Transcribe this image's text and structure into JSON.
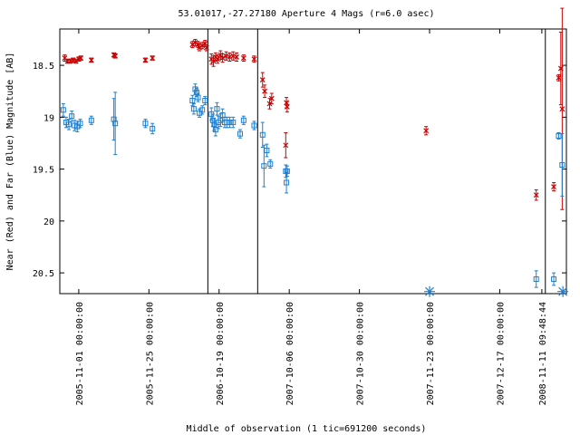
{
  "chart_data": {
    "type": "scatter",
    "title": "53.01017,-27.27180   Aperture 4 Mags (r=6.0 asec)",
    "xlabel": "Middle of observation (1 tic=691200 seconds)",
    "ylabel": "Near (Red) and Far (Blue) Magnitude [AB]",
    "ylim": [
      20.7,
      18.15
    ],
    "y_reversed": true,
    "xlim": [
      -0.27,
      6.95
    ],
    "y_ticks": [
      "18.5",
      "19",
      "19.5",
      "20",
      "20.5"
    ],
    "y_tick_values": [
      18.5,
      19.0,
      19.5,
      20.0,
      20.5
    ],
    "x_ticks": [
      "2005-11-01 00:00:00",
      "2005-11-25 00:00:00",
      "2006-10-19 00:00:00",
      "2007-10-06 00:00:00",
      "2007-10-30 00:00:00",
      "2007-11-23 00:00:00",
      "2007-12-17 00:00:00",
      "2008-11-11 09:48:44"
    ],
    "x_tick_positions": [
      0,
      1,
      2,
      3,
      4,
      5,
      6,
      6.6
    ],
    "segment_breaks": [
      1.84,
      2.55,
      6.65
    ],
    "grid": false,
    "legend": "none",
    "colors": {
      "near": "#cc0000",
      "far": "#1f7fd0",
      "marker_star": "#1f7fd0",
      "axis": "#000000"
    },
    "series": [
      {
        "name": "Near (Red)",
        "marker": "x",
        "points": [
          {
            "x": -0.2,
            "y": 18.43,
            "e": 0.03
          },
          {
            "x": -0.16,
            "y": 18.46,
            "e": 0.02
          },
          {
            "x": -0.12,
            "y": 18.46,
            "e": 0.02
          },
          {
            "x": -0.08,
            "y": 18.45,
            "e": 0.02
          },
          {
            "x": -0.04,
            "y": 18.46,
            "e": 0.02
          },
          {
            "x": 0.0,
            "y": 18.44,
            "e": 0.02
          },
          {
            "x": 0.03,
            "y": 18.43,
            "e": 0.02
          },
          {
            "x": 0.18,
            "y": 18.45,
            "e": 0.02
          },
          {
            "x": 0.5,
            "y": 18.4,
            "e": 0.02
          },
          {
            "x": 0.52,
            "y": 18.41,
            "e": 0.02
          },
          {
            "x": 0.95,
            "y": 18.45,
            "e": 0.02
          },
          {
            "x": 1.05,
            "y": 18.43,
            "e": 0.02
          },
          {
            "x": 1.62,
            "y": 18.3,
            "e": 0.03
          },
          {
            "x": 1.66,
            "y": 18.28,
            "e": 0.03
          },
          {
            "x": 1.7,
            "y": 18.3,
            "e": 0.03
          },
          {
            "x": 1.72,
            "y": 18.33,
            "e": 0.03
          },
          {
            "x": 1.76,
            "y": 18.31,
            "e": 0.03
          },
          {
            "x": 1.8,
            "y": 18.29,
            "e": 0.03
          },
          {
            "x": 1.82,
            "y": 18.33,
            "e": 0.03
          },
          {
            "x": 1.89,
            "y": 18.44,
            "e": 0.05
          },
          {
            "x": 1.92,
            "y": 18.46,
            "e": 0.05
          },
          {
            "x": 1.95,
            "y": 18.42,
            "e": 0.04
          },
          {
            "x": 1.98,
            "y": 18.44,
            "e": 0.04
          },
          {
            "x": 2.02,
            "y": 18.4,
            "e": 0.04
          },
          {
            "x": 2.05,
            "y": 18.43,
            "e": 0.04
          },
          {
            "x": 2.1,
            "y": 18.41,
            "e": 0.04
          },
          {
            "x": 2.15,
            "y": 18.42,
            "e": 0.04
          },
          {
            "x": 2.2,
            "y": 18.41,
            "e": 0.04
          },
          {
            "x": 2.25,
            "y": 18.42,
            "e": 0.04
          },
          {
            "x": 2.35,
            "y": 18.43,
            "e": 0.03
          },
          {
            "x": 2.5,
            "y": 18.44,
            "e": 0.03
          },
          {
            "x": 2.62,
            "y": 18.64,
            "e": 0.07
          },
          {
            "x": 2.65,
            "y": 18.75,
            "e": 0.06
          },
          {
            "x": 2.72,
            "y": 18.87,
            "e": 0.05
          },
          {
            "x": 2.75,
            "y": 18.82,
            "e": 0.05
          },
          {
            "x": 2.95,
            "y": 19.27,
            "e": 0.12
          },
          {
            "x": 2.96,
            "y": 18.86,
            "e": 0.05
          },
          {
            "x": 2.97,
            "y": 18.9,
            "e": 0.05
          },
          {
            "x": 4.95,
            "y": 19.13,
            "e": 0.04
          },
          {
            "x": 6.52,
            "y": 19.75,
            "e": 0.05
          },
          {
            "x": 6.77,
            "y": 19.67,
            "e": 0.04
          },
          {
            "x": 6.84,
            "y": 18.62,
            "e": 0.03
          },
          {
            "x": 6.87,
            "y": 18.53,
            "e": 0.35
          },
          {
            "x": 6.89,
            "y": 18.92,
            "e": 0.97
          }
        ]
      },
      {
        "name": "Far (Blue)",
        "marker": "square",
        "points": [
          {
            "x": -0.22,
            "y": 18.93,
            "e": 0.06
          },
          {
            "x": -0.18,
            "y": 19.05,
            "e": 0.05
          },
          {
            "x": -0.14,
            "y": 19.07,
            "e": 0.05
          },
          {
            "x": -0.1,
            "y": 18.99,
            "e": 0.05
          },
          {
            "x": -0.06,
            "y": 19.08,
            "e": 0.05
          },
          {
            "x": -0.02,
            "y": 19.09,
            "e": 0.05
          },
          {
            "x": 0.02,
            "y": 19.06,
            "e": 0.04
          },
          {
            "x": 0.18,
            "y": 19.03,
            "e": 0.04
          },
          {
            "x": 0.5,
            "y": 19.02,
            "e": 0.2
          },
          {
            "x": 0.52,
            "y": 19.06,
            "e": 0.3
          },
          {
            "x": 0.95,
            "y": 19.06,
            "e": 0.04
          },
          {
            "x": 1.05,
            "y": 19.11,
            "e": 0.05
          },
          {
            "x": 1.62,
            "y": 18.84,
            "e": 0.05
          },
          {
            "x": 1.64,
            "y": 18.92,
            "e": 0.05
          },
          {
            "x": 1.66,
            "y": 18.73,
            "e": 0.05
          },
          {
            "x": 1.68,
            "y": 18.76,
            "e": 0.04
          },
          {
            "x": 1.7,
            "y": 18.81,
            "e": 0.04
          },
          {
            "x": 1.72,
            "y": 18.96,
            "e": 0.04
          },
          {
            "x": 1.76,
            "y": 18.93,
            "e": 0.04
          },
          {
            "x": 1.8,
            "y": 18.84,
            "e": 0.04
          },
          {
            "x": 1.89,
            "y": 18.97,
            "e": 0.06
          },
          {
            "x": 1.91,
            "y": 19.03,
            "e": 0.06
          },
          {
            "x": 1.93,
            "y": 19.07,
            "e": 0.06
          },
          {
            "x": 1.95,
            "y": 19.12,
            "e": 0.06
          },
          {
            "x": 1.97,
            "y": 18.92,
            "e": 0.06
          },
          {
            "x": 1.99,
            "y": 19.05,
            "e": 0.06
          },
          {
            "x": 2.02,
            "y": 19.03,
            "e": 0.06
          },
          {
            "x": 2.05,
            "y": 18.98,
            "e": 0.06
          },
          {
            "x": 2.08,
            "y": 19.05,
            "e": 0.05
          },
          {
            "x": 2.11,
            "y": 19.05,
            "e": 0.05
          },
          {
            "x": 2.15,
            "y": 19.05,
            "e": 0.05
          },
          {
            "x": 2.2,
            "y": 19.05,
            "e": 0.05
          },
          {
            "x": 2.3,
            "y": 19.16,
            "e": 0.04
          },
          {
            "x": 2.35,
            "y": 19.03,
            "e": 0.04
          },
          {
            "x": 2.5,
            "y": 19.08,
            "e": 0.04
          },
          {
            "x": 2.62,
            "y": 19.17,
            "e": 0.12
          },
          {
            "x": 2.64,
            "y": 19.47,
            "e": 0.2
          },
          {
            "x": 2.68,
            "y": 19.32,
            "e": 0.06
          },
          {
            "x": 2.73,
            "y": 19.45,
            "e": 0.04
          },
          {
            "x": 2.95,
            "y": 19.52,
            "e": 0.06
          },
          {
            "x": 2.96,
            "y": 19.63,
            "e": 0.1
          },
          {
            "x": 2.97,
            "y": 19.52,
            "e": 0.05
          },
          {
            "x": 6.52,
            "y": 20.56,
            "e": 0.08
          },
          {
            "x": 6.77,
            "y": 20.56,
            "e": 0.06
          },
          {
            "x": 6.84,
            "y": 19.18,
            "e": 0.03
          },
          {
            "x": 6.89,
            "y": 19.46,
            "e": 0.3
          }
        ]
      },
      {
        "name": "Limit marker",
        "marker": "star",
        "points": [
          {
            "x": 5.0,
            "y": 20.68
          },
          {
            "x": 6.9,
            "y": 20.68
          }
        ]
      }
    ]
  }
}
